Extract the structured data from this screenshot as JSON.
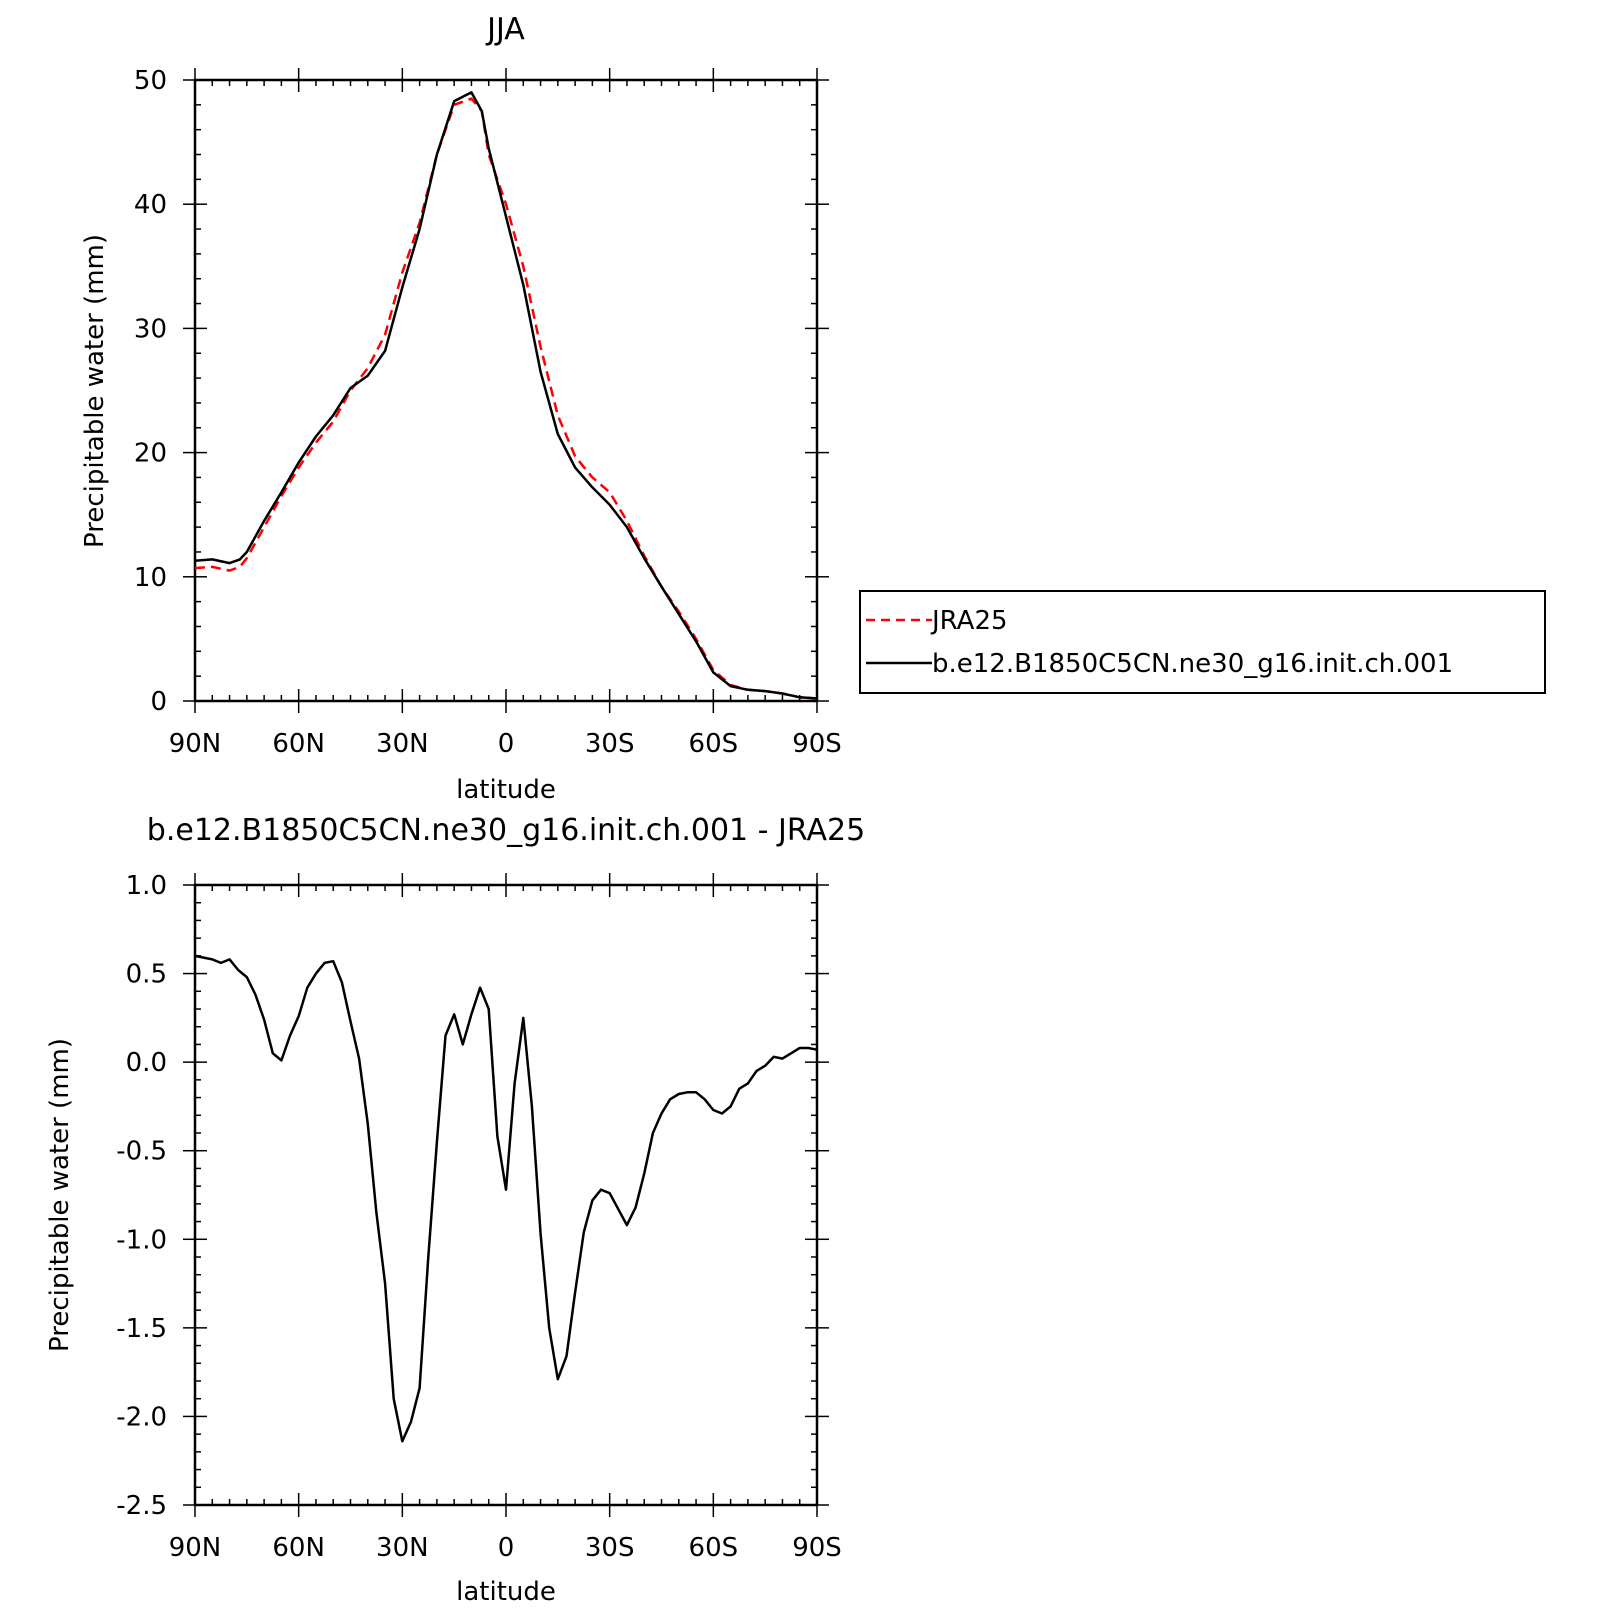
{
  "chart_data": [
    {
      "type": "line",
      "title": "JJA",
      "xlabel": "latitude",
      "ylabel": "Precipitable water (mm)",
      "xlim": [
        90,
        -90
      ],
      "ylim": [
        0,
        50
      ],
      "x_tick_values": [
        90,
        60,
        30,
        0,
        -30,
        -60,
        -90
      ],
      "x_tick_labels": [
        "90N",
        "60N",
        "30N",
        "0",
        "30S",
        "60S",
        "90S"
      ],
      "y_tick_values": [
        0,
        10,
        20,
        30,
        40,
        50
      ],
      "y_tick_labels": [
        "0",
        "10",
        "20",
        "30",
        "40",
        "50"
      ],
      "grid": false,
      "legend_position": "right",
      "series": [
        {
          "name": "JRA25",
          "color": "#ff0000",
          "style": "dashed",
          "x": [
            90,
            85,
            80,
            77,
            75,
            70,
            65,
            60,
            55,
            50,
            45,
            40,
            35,
            30,
            25,
            20,
            15,
            10,
            7,
            5,
            0,
            -5,
            -10,
            -15,
            -20,
            -25,
            -30,
            -35,
            -40,
            -45,
            -50,
            -55,
            -60,
            -65,
            -70,
            -75,
            -80,
            -85,
            -90
          ],
          "y": [
            10.7,
            10.8,
            10.5,
            10.8,
            11.5,
            14,
            16.5,
            18.8,
            20.8,
            22.5,
            25,
            26.8,
            29.5,
            34.5,
            38.5,
            44,
            48,
            48.5,
            47.5,
            44,
            40,
            35,
            28.5,
            23,
            19.7,
            18,
            16.8,
            14.5,
            11.7,
            9.2,
            7.2,
            5,
            2.5,
            1.3,
            0.9,
            0.8,
            0.6,
            0.3,
            0.2
          ]
        },
        {
          "name": "b.e12.B1850C5CN.ne30_g16.init.ch.001",
          "color": "#000000",
          "style": "solid",
          "x": [
            90,
            85,
            80,
            77,
            75,
            70,
            65,
            60,
            55,
            50,
            45,
            40,
            35,
            30,
            25,
            20,
            15,
            10,
            7,
            5,
            0,
            -5,
            -10,
            -15,
            -20,
            -25,
            -30,
            -35,
            -40,
            -45,
            -50,
            -55,
            -60,
            -65,
            -70,
            -75,
            -80,
            -85,
            -90
          ],
          "y": [
            11.3,
            11.4,
            11.1,
            11.4,
            12,
            14.5,
            16.8,
            19.2,
            21.3,
            23,
            25.2,
            26.2,
            28.2,
            33.3,
            38,
            44,
            48.3,
            49,
            47.5,
            44.5,
            39,
            33.5,
            26.5,
            21.5,
            18.8,
            17.2,
            15.8,
            14,
            11.5,
            9.2,
            7,
            4.8,
            2.3,
            1.2,
            0.9,
            0.8,
            0.6,
            0.3,
            0.2
          ]
        }
      ]
    },
    {
      "type": "line",
      "title": "b.e12.B1850C5CN.ne30_g16.init.ch.001 - JRA25",
      "xlabel": "latitude",
      "ylabel": "Precipitable water (mm)",
      "xlim": [
        90,
        -90
      ],
      "ylim": [
        -2.5,
        1.0
      ],
      "x_tick_values": [
        90,
        60,
        30,
        0,
        -30,
        -60,
        -90
      ],
      "x_tick_labels": [
        "90N",
        "60N",
        "30N",
        "0",
        "30S",
        "60S",
        "90S"
      ],
      "y_tick_values": [
        1.0,
        0.5,
        0.0,
        -0.5,
        -1.0,
        -1.5,
        -2.0,
        -2.5
      ],
      "y_tick_labels": [
        "1.0",
        "0.5",
        "0.0",
        "-0.5",
        "-1.0",
        "-1.5",
        "-2.0",
        "-2.5"
      ],
      "grid": false,
      "series": [
        {
          "color": "#000000",
          "style": "solid",
          "x": [
            90,
            87.5,
            85,
            82.5,
            80,
            77.5,
            75,
            72.5,
            70,
            67.5,
            65,
            62.5,
            60,
            57.5,
            55,
            52.5,
            50,
            47.5,
            45,
            42.5,
            40,
            37.5,
            35,
            32.5,
            30,
            27.5,
            25,
            22.5,
            20,
            17.5,
            15,
            12.5,
            10,
            7.5,
            5,
            2.5,
            0,
            -2.5,
            -5,
            -7.5,
            -10,
            -12.5,
            -15,
            -17.5,
            -20,
            -22.5,
            -25,
            -27.5,
            -30,
            -32.5,
            -35,
            -37.5,
            -40,
            -42.5,
            -45,
            -47.5,
            -50,
            -52.5,
            -55,
            -57.5,
            -60,
            -62.5,
            -65,
            -67.5,
            -70,
            -72.5,
            -75,
            -77.5,
            -80,
            -82.5,
            -85,
            -87.5,
            -90
          ],
          "y": [
            0.6,
            0.59,
            0.58,
            0.56,
            0.58,
            0.52,
            0.48,
            0.38,
            0.24,
            0.05,
            0.01,
            0.15,
            0.26,
            0.42,
            0.5,
            0.56,
            0.57,
            0.45,
            0.23,
            0.02,
            -0.35,
            -0.85,
            -1.25,
            -1.9,
            -2.14,
            -2.03,
            -1.84,
            -1.1,
            -0.45,
            0.15,
            0.27,
            0.1,
            0.27,
            0.42,
            0.3,
            -0.42,
            -0.72,
            -0.12,
            0.25,
            -0.25,
            -0.97,
            -1.5,
            -1.79,
            -1.66,
            -1.3,
            -0.96,
            -0.78,
            -0.72,
            -0.74,
            -0.83,
            -0.92,
            -0.82,
            -0.63,
            -0.4,
            -0.29,
            -0.21,
            -0.18,
            -0.17,
            -0.17,
            -0.21,
            -0.27,
            -0.29,
            -0.25,
            -0.15,
            -0.12,
            -0.05,
            -0.02,
            0.03,
            0.02,
            0.05,
            0.08,
            0.08,
            0.07
          ]
        }
      ]
    }
  ]
}
